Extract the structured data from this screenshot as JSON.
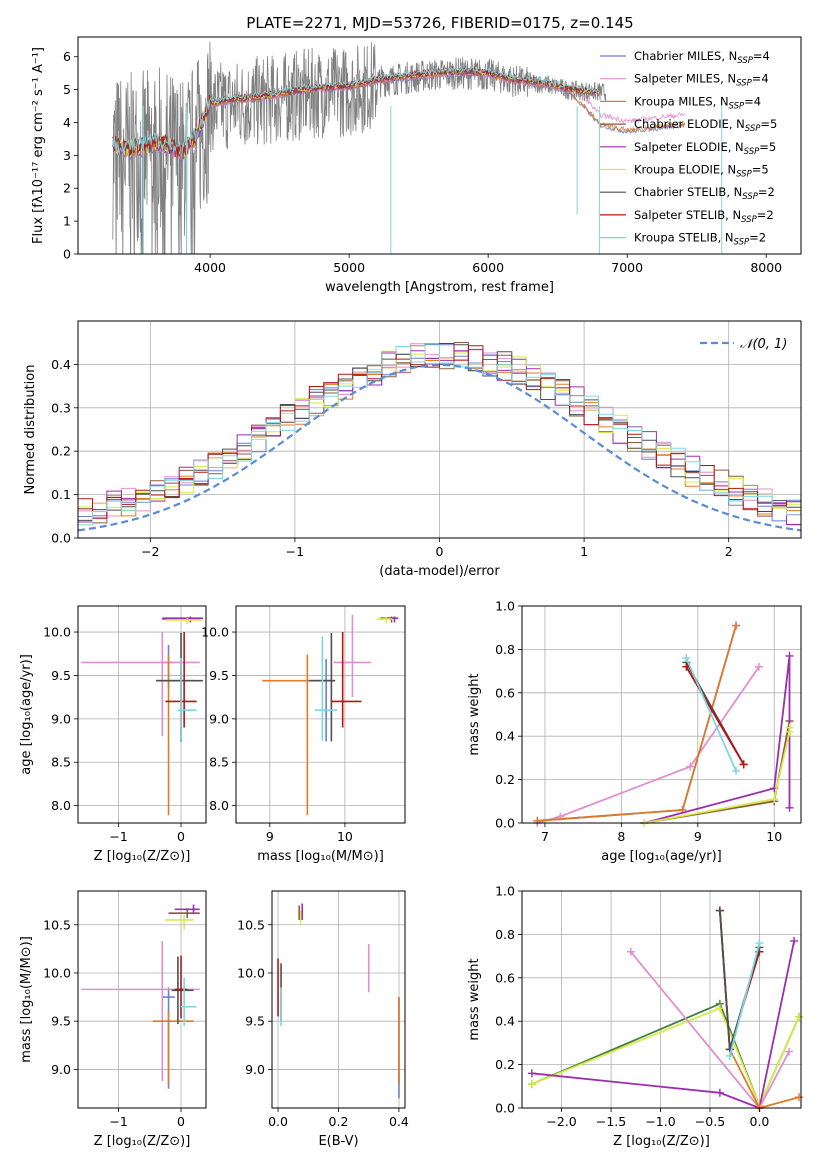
{
  "figure_title": "PLATE=2271, MJD=53726, FIBERID=0175, z=0.145",
  "colors": {
    "chabrier_miles": "#6b7fd7",
    "salpeter_miles": "#e28fcf",
    "kroupa_miles": "#e07a27",
    "chabrier_elodie": "#8c5a3c",
    "salpeter_elodie": "#9b2fb0",
    "kroupa_elodie": "#d8ea4a",
    "chabrier_stelib": "#4f4f4f",
    "salpeter_stelib": "#b81414",
    "kroupa_stelib": "#7fd6df",
    "data": "#808080",
    "gaussian": "#5b8bd6",
    "extra_green": "#3f7f3f"
  },
  "chart_data": [
    {
      "id": "spectrum",
      "type": "line",
      "title": "PLATE=2271, MJD=53726, FIBERID=0175, z=0.145",
      "xlabel": "wavelength [Angstrom, rest frame]",
      "ylabel": "Flux [fλ10⁻¹⁷ erg cm⁻² s⁻¹ A⁻¹]",
      "xlim": [
        3050,
        8250
      ],
      "ylim": [
        0,
        6.6
      ],
      "xticks": [
        4000,
        5000,
        6000,
        7000,
        8000
      ],
      "yticks": [
        0,
        1,
        2,
        3,
        4,
        5,
        6
      ],
      "grid": false,
      "legend_position": "upper-right",
      "legend": [
        {
          "main": "Chabrier MILES, N",
          "sub": "SSP",
          "tail": "=4",
          "color_key": "chabrier_miles"
        },
        {
          "main": "Salpeter MILES, N",
          "sub": "SSP",
          "tail": "=4",
          "color_key": "salpeter_miles"
        },
        {
          "main": "Kroupa MILES, N",
          "sub": "SSP",
          "tail": "=4",
          "color_key": "kroupa_miles"
        },
        {
          "main": "Chabrier ELODIE, N",
          "sub": "SSP",
          "tail": "=5",
          "color_key": "chabrier_elodie"
        },
        {
          "main": "Salpeter ELODIE, N",
          "sub": "SSP",
          "tail": "=5",
          "color_key": "salpeter_elodie"
        },
        {
          "main": "Kroupa ELODIE, N",
          "sub": "SSP",
          "tail": "=5",
          "color_key": "kroupa_elodie"
        },
        {
          "main": "Chabrier STELIB, N",
          "sub": "SSP",
          "tail": "=2",
          "color_key": "chabrier_stelib"
        },
        {
          "main": "Salpeter STELIB, N",
          "sub": "SSP",
          "tail": "=2",
          "color_key": "salpeter_stelib"
        },
        {
          "main": "Kroupa STELIB, N",
          "sub": "SSP",
          "tail": "=2",
          "color_key": "kroupa_stelib"
        }
      ],
      "continuum": {
        "x": [
          3300,
          3400,
          3500,
          3600,
          3700,
          3800,
          3900,
          4000,
          4200,
          4400,
          4600,
          4800,
          5000,
          5200,
          5400,
          5600,
          5800,
          6000,
          6200,
          6400,
          6600,
          6800
        ],
        "y": [
          3.3,
          3.2,
          3.25,
          3.4,
          3.3,
          3.1,
          3.6,
          4.6,
          4.7,
          4.8,
          4.95,
          5.05,
          5.1,
          5.3,
          5.4,
          5.5,
          5.55,
          5.5,
          5.3,
          5.2,
          5.0,
          4.95
        ]
      },
      "model_tail_miles": {
        "x": [
          6600,
          6700,
          6800,
          6900,
          7000,
          7100,
          7200,
          7300,
          7400
        ],
        "y": [
          4.9,
          4.5,
          4.0,
          3.9,
          3.8,
          3.85,
          3.9,
          3.95,
          4.0
        ]
      },
      "model_tail_elodie": {
        "x": [
          6600,
          6700,
          6800,
          6900,
          7000,
          7100,
          7200,
          7300,
          7400
        ],
        "y": [
          5.0,
          4.95,
          4.9,
          4.9,
          4.9,
          4.85,
          4.9,
          4.9,
          4.9
        ]
      }
    },
    {
      "id": "residuals",
      "type": "line",
      "xlabel": "(data-model)/error",
      "ylabel": "Normed distribution",
      "xlim": [
        -2.5,
        2.5
      ],
      "ylim": [
        0,
        0.5
      ],
      "xticks": [
        -2,
        -1,
        0,
        1,
        2
      ],
      "yticks": [
        0.0,
        0.1,
        0.2,
        0.3,
        0.4
      ],
      "grid": true,
      "legend_position": "upper-right",
      "legend_label": "𝒩(0, 1)",
      "gaussian": {
        "mu": 0,
        "sigma": 1
      }
    },
    {
      "id": "age_vs_Z",
      "type": "scatter",
      "xlabel": "Z [log₁₀(Z/Z⊙)]",
      "ylabel": "age  [log₁₀(age/yr)]",
      "xlim": [
        -1.65,
        0.4
      ],
      "ylim": [
        7.8,
        10.3
      ],
      "xticks": [
        -1,
        0
      ],
      "yticks": [
        8.0,
        8.5,
        9.0,
        9.5,
        10.0
      ],
      "grid": true,
      "points": [
        {
          "series": "chabrier_miles",
          "x": -0.2,
          "y": 9.65,
          "xerr": [
            0.1,
            0.1
          ],
          "yerr": [
            0.3,
            0.2
          ]
        },
        {
          "series": "salpeter_miles",
          "x": -0.3,
          "y": 9.65,
          "xerr": [
            1.3,
            0.6
          ],
          "yerr": [
            0.85,
            0.35
          ]
        },
        {
          "series": "kroupa_miles",
          "x": -0.2,
          "y": 9.44,
          "xerr": [
            0.2,
            0.4
          ],
          "yerr": [
            1.55,
            0.3
          ]
        },
        {
          "series": "chabrier_elodie",
          "x": 0.1,
          "y": 10.15,
          "xerr": [
            0.4,
            0.2
          ],
          "yerr": [
            0.05,
            0.02
          ]
        },
        {
          "series": "salpeter_elodie",
          "x": 0.15,
          "y": 10.16,
          "xerr": [
            0.45,
            0.2
          ],
          "yerr": [
            0.05,
            0.02
          ]
        },
        {
          "series": "kroupa_elodie",
          "x": 0.1,
          "y": 10.14,
          "xerr": [
            0.35,
            0.25
          ],
          "yerr": [
            0.05,
            0.02
          ]
        },
        {
          "series": "chabrier_stelib",
          "x": 0.0,
          "y": 9.44,
          "xerr": [
            0.4,
            0.35
          ],
          "yerr": [
            0.7,
            0.55
          ]
        },
        {
          "series": "salpeter_stelib",
          "x": 0.05,
          "y": 9.2,
          "xerr": [
            0.3,
            0.2
          ],
          "yerr": [
            0.3,
            0.8
          ]
        },
        {
          "series": "kroupa_stelib",
          "x": 0.0,
          "y": 9.1,
          "xerr": [
            0.05,
            0.25
          ],
          "yerr": [
            0.35,
            0.6
          ]
        }
      ]
    },
    {
      "id": "age_vs_mass",
      "type": "scatter",
      "xlabel": "mass [log₁₀(M/M⊙)]",
      "ylabel": "",
      "xlim": [
        8.55,
        10.8
      ],
      "ylim": [
        7.8,
        10.3
      ],
      "xticks": [
        9,
        10
      ],
      "yticks": [
        8.0,
        8.5,
        9.0,
        9.5,
        10.0
      ],
      "grid": true,
      "points": [
        {
          "series": "chabrier_miles",
          "x": 9.75,
          "y": 9.44,
          "xerr": [
            0.1,
            0.1
          ],
          "yerr": [
            0.7,
            0.25
          ]
        },
        {
          "series": "salpeter_miles",
          "x": 10.1,
          "y": 9.65,
          "xerr": [
            0.25,
            0.25
          ],
          "yerr": [
            0.4,
            0.55
          ]
        },
        {
          "series": "kroupa_miles",
          "x": 9.5,
          "y": 9.44,
          "xerr": [
            0.6,
            0.3
          ],
          "yerr": [
            1.55,
            0.3
          ]
        },
        {
          "series": "chabrier_elodie",
          "x": 10.62,
          "y": 10.16,
          "xerr": [
            0.15,
            0.05
          ],
          "yerr": [
            0.05,
            0.02
          ]
        },
        {
          "series": "salpeter_elodie",
          "x": 10.66,
          "y": 10.16,
          "xerr": [
            0.12,
            0.05
          ],
          "yerr": [
            0.05,
            0.02
          ]
        },
        {
          "series": "kroupa_elodie",
          "x": 10.55,
          "y": 10.15,
          "xerr": [
            0.12,
            0.08
          ],
          "yerr": [
            0.05,
            0.02
          ]
        },
        {
          "series": "chabrier_stelib",
          "x": 9.82,
          "y": 9.44,
          "xerr": [
            0.3,
            0.05
          ],
          "yerr": [
            0.7,
            0.55
          ]
        },
        {
          "series": "salpeter_stelib",
          "x": 9.97,
          "y": 9.2,
          "xerr": [
            0.15,
            0.25
          ],
          "yerr": [
            0.3,
            0.8
          ]
        },
        {
          "series": "kroupa_stelib",
          "x": 9.7,
          "y": 9.1,
          "xerr": [
            0.1,
            0.2
          ],
          "yerr": [
            0.35,
            0.85
          ]
        }
      ]
    },
    {
      "id": "weight_vs_age",
      "type": "line",
      "xlabel": "age  [log₁₀(age/yr)]",
      "ylabel": "mass weight",
      "xlim": [
        6.7,
        10.35
      ],
      "ylim": [
        0,
        1.0
      ],
      "xticks": [
        7,
        8,
        9,
        10
      ],
      "yticks": [
        0.0,
        0.2,
        0.4,
        0.6,
        0.8,
        1.0
      ],
      "grid": true,
      "series": [
        {
          "key": "chabrier_miles",
          "x": [
            6.9,
            8.8,
            9.5
          ],
          "y": [
            0.01,
            0.06,
            0.91
          ]
        },
        {
          "key": "salpeter_miles",
          "x": [
            6.9,
            7.2,
            8.9,
            9.8
          ],
          "y": [
            0.0,
            0.03,
            0.26,
            0.72
          ]
        },
        {
          "key": "kroupa_miles",
          "x": [
            6.9,
            8.8,
            9.5
          ],
          "y": [
            0.01,
            0.06,
            0.91
          ]
        },
        {
          "key": "chabrier_elodie",
          "x": [
            8.3,
            10.0,
            10.2
          ],
          "y": [
            0.0,
            0.1,
            0.47
          ]
        },
        {
          "key": "salpeter_elodie",
          "x": [
            8.3,
            10.0,
            10.2,
            10.2
          ],
          "y": [
            0.0,
            0.16,
            0.77,
            0.07
          ]
        },
        {
          "key": "kroupa_elodie",
          "x": [
            8.3,
            10.0,
            10.2,
            10.2
          ],
          "y": [
            0.0,
            0.11,
            0.42,
            0.44
          ]
        },
        {
          "key": "chabrier_stelib",
          "x": [
            8.85,
            9.6
          ],
          "y": [
            0.74,
            0.27
          ]
        },
        {
          "key": "salpeter_stelib",
          "x": [
            8.85,
            9.6
          ],
          "y": [
            0.72,
            0.27
          ]
        },
        {
          "key": "kroupa_stelib",
          "x": [
            8.85,
            9.5
          ],
          "y": [
            0.76,
            0.24
          ]
        }
      ]
    },
    {
      "id": "mass_vs_Z",
      "type": "scatter",
      "xlabel": "Z [log₁₀(Z/Z⊙)]",
      "ylabel": "mass [log₁₀(M/M⊙)]",
      "xlim": [
        -1.65,
        0.4
      ],
      "ylim": [
        8.6,
        10.85
      ],
      "xticks": [
        -1,
        0
      ],
      "yticks": [
        9.0,
        9.5,
        10.0,
        10.5
      ],
      "grid": true,
      "points": [
        {
          "series": "chabrier_miles",
          "x": -0.2,
          "y": 9.75,
          "xerr": [
            0.1,
            0.1
          ],
          "yerr": [
            0.95,
            0.1
          ]
        },
        {
          "series": "salpeter_miles",
          "x": -0.3,
          "y": 9.83,
          "xerr": [
            1.3,
            0.6
          ],
          "yerr": [
            0.95,
            0.5
          ]
        },
        {
          "series": "kroupa_miles",
          "x": -0.2,
          "y": 9.5,
          "xerr": [
            0.25,
            0.4
          ],
          "yerr": [
            0.65,
            0.1
          ]
        },
        {
          "series": "chabrier_elodie",
          "x": 0.1,
          "y": 10.62,
          "xerr": [
            0.3,
            0.2
          ],
          "yerr": [
            0.05,
            0.05
          ]
        },
        {
          "series": "salpeter_elodie",
          "x": 0.2,
          "y": 10.66,
          "xerr": [
            0.3,
            0.1
          ],
          "yerr": [
            0.05,
            0.05
          ]
        },
        {
          "series": "kroupa_elodie",
          "x": 0.05,
          "y": 10.55,
          "xerr": [
            0.3,
            0.15
          ],
          "yerr": [
            0.1,
            0.05
          ]
        },
        {
          "series": "chabrier_stelib",
          "x": -0.05,
          "y": 9.82,
          "xerr": [
            0.1,
            0.25
          ],
          "yerr": [
            0.35,
            0.35
          ]
        },
        {
          "series": "salpeter_stelib",
          "x": 0.0,
          "y": 9.83,
          "xerr": [
            0.1,
            0.1
          ],
          "yerr": [
            0.3,
            0.35
          ]
        },
        {
          "series": "kroupa_stelib",
          "x": 0.05,
          "y": 9.65,
          "xerr": [
            0.05,
            0.2
          ],
          "yerr": [
            0.2,
            0.3
          ]
        }
      ]
    },
    {
      "id": "mass_vs_ebv",
      "type": "scatter",
      "xlabel": "E(B-V)",
      "ylabel": "",
      "xlim": [
        -0.02,
        0.42
      ],
      "ylim": [
        8.6,
        10.85
      ],
      "xticks": [
        0.0,
        0.2,
        0.4
      ],
      "yticks": [
        9.0,
        9.5,
        10.0,
        10.5
      ],
      "grid": true,
      "points": [
        {
          "series": "chabrier_miles",
          "x": 0.4,
          "y": 9.0,
          "xerr": [
            0,
            0
          ],
          "yerr": [
            0.3,
            0.75
          ]
        },
        {
          "series": "salpeter_miles",
          "x": 0.3,
          "y": 10.05,
          "xerr": [
            0,
            0
          ],
          "yerr": [
            0.25,
            0.25
          ]
        },
        {
          "series": "kroupa_miles",
          "x": 0.4,
          "y": 9.3,
          "xerr": [
            0,
            0
          ],
          "yerr": [
            0.45,
            0.45
          ]
        },
        {
          "series": "chabrier_elodie",
          "x": 0.07,
          "y": 10.6,
          "xerr": [
            0,
            0
          ],
          "yerr": [
            0.05,
            0.1
          ]
        },
        {
          "series": "salpeter_elodie",
          "x": 0.08,
          "y": 10.6,
          "xerr": [
            0,
            0
          ],
          "yerr": [
            0.05,
            0.12
          ]
        },
        {
          "series": "kroupa_elodie",
          "x": 0.075,
          "y": 10.55,
          "xerr": [
            0,
            0
          ],
          "yerr": [
            0.05,
            0.1
          ]
        },
        {
          "series": "chabrier_stelib",
          "x": 0.01,
          "y": 9.8,
          "xerr": [
            0,
            0
          ],
          "yerr": [
            0.3,
            0.3
          ]
        },
        {
          "series": "salpeter_stelib",
          "x": 0.0,
          "y": 9.85,
          "xerr": [
            0,
            0
          ],
          "yerr": [
            0.3,
            0.3
          ]
        },
        {
          "series": "kroupa_stelib",
          "x": 0.01,
          "y": 9.65,
          "xerr": [
            0,
            0
          ],
          "yerr": [
            0.2,
            0.2
          ]
        }
      ]
    },
    {
      "id": "weight_vs_Z",
      "type": "line",
      "xlabel": "Z [log₁₀(Z/Z⊙)]",
      "ylabel": "mass weight",
      "xlim": [
        -2.4,
        0.42
      ],
      "ylim": [
        0,
        1.0
      ],
      "xticks": [
        -2.0,
        -1.5,
        -1.0,
        -0.5,
        0.0
      ],
      "yticks": [
        0.0,
        0.2,
        0.4,
        0.6,
        0.8,
        1.0
      ],
      "grid": true,
      "series": [
        {
          "key": "extra_green",
          "x": [
            -2.3,
            -0.4,
            0.0,
            0.4
          ],
          "y": [
            0.11,
            0.48,
            0.01,
            0.42
          ]
        },
        {
          "key": "kroupa_elodie",
          "x": [
            -2.3,
            -0.4,
            0.0,
            0.4
          ],
          "y": [
            0.11,
            0.46,
            0.01,
            0.42
          ]
        },
        {
          "key": "salpeter_elodie",
          "x": [
            -2.3,
            -0.4,
            0.0,
            0.35
          ],
          "y": [
            0.16,
            0.07,
            0.0,
            0.77
          ]
        },
        {
          "key": "salpeter_miles",
          "x": [
            -1.3,
            0.0,
            0.3
          ],
          "y": [
            0.72,
            0.0,
            0.26
          ]
        },
        {
          "key": "kroupa_miles",
          "x": [
            -0.4,
            -0.3,
            0.0,
            0.4
          ],
          "y": [
            0.91,
            0.27,
            0.0,
            0.05
          ]
        },
        {
          "key": "salpeter_stelib",
          "x": [
            -0.4,
            -0.3,
            0.0
          ],
          "y": [
            0.91,
            0.27,
            0.72
          ]
        },
        {
          "key": "chabrier_stelib",
          "x": [
            -0.4,
            -0.3,
            0.0
          ],
          "y": [
            0.91,
            0.27,
            0.74
          ]
        },
        {
          "key": "kroupa_stelib",
          "x": [
            -0.3,
            0.0
          ],
          "y": [
            0.24,
            0.76
          ]
        }
      ]
    }
  ]
}
